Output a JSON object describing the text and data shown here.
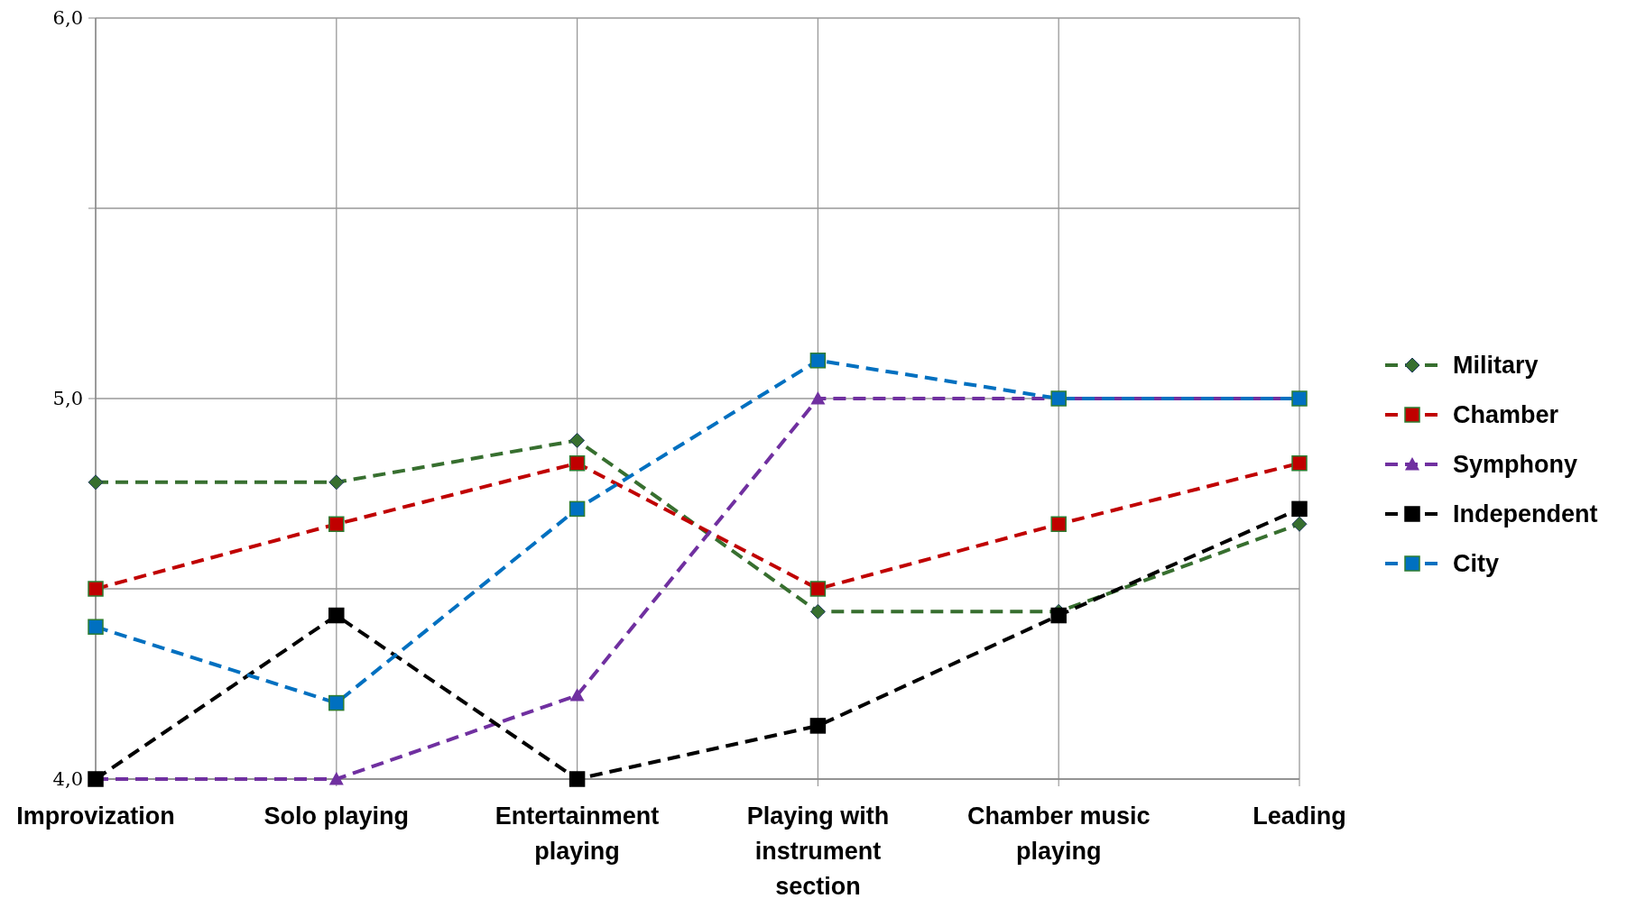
{
  "chart_data": {
    "type": "line",
    "categories": [
      "Improvization",
      "Solo playing",
      "Entertainment playing",
      "Playing with instrument section",
      "Chamber music playing",
      "Leading"
    ],
    "series": [
      {
        "name": "Military",
        "color": "#376f2f",
        "marker": "diamond",
        "values": [
          4.78,
          4.78,
          4.89,
          4.44,
          4.44,
          4.67
        ]
      },
      {
        "name": "Chamber",
        "color": "#c00000",
        "marker": "square",
        "values": [
          4.5,
          4.67,
          4.83,
          4.5,
          4.67,
          4.83
        ]
      },
      {
        "name": "Symphony",
        "color": "#7030a0",
        "marker": "triangle",
        "values": [
          4.0,
          4.0,
          4.22,
          5.0,
          5.0,
          5.0
        ]
      },
      {
        "name": "Independent",
        "color": "#000000",
        "marker": "square",
        "values": [
          4.0,
          4.43,
          4.0,
          4.14,
          4.43,
          4.71
        ]
      },
      {
        "name": "City",
        "color": "#0070c0",
        "marker": "square",
        "values": [
          4.4,
          4.2,
          4.71,
          5.1,
          5.0,
          5.0
        ]
      }
    ],
    "ylim": [
      4,
      6
    ],
    "yticks": [
      {
        "value": 4,
        "label": "4,0"
      },
      {
        "value": 4.5,
        "label": null
      },
      {
        "value": 5,
        "label": "5,0"
      },
      {
        "value": 5.5,
        "label": null
      },
      {
        "value": 6,
        "label": "6,0"
      }
    ],
    "grid": true,
    "legend": "right",
    "line_style": "dashed"
  }
}
